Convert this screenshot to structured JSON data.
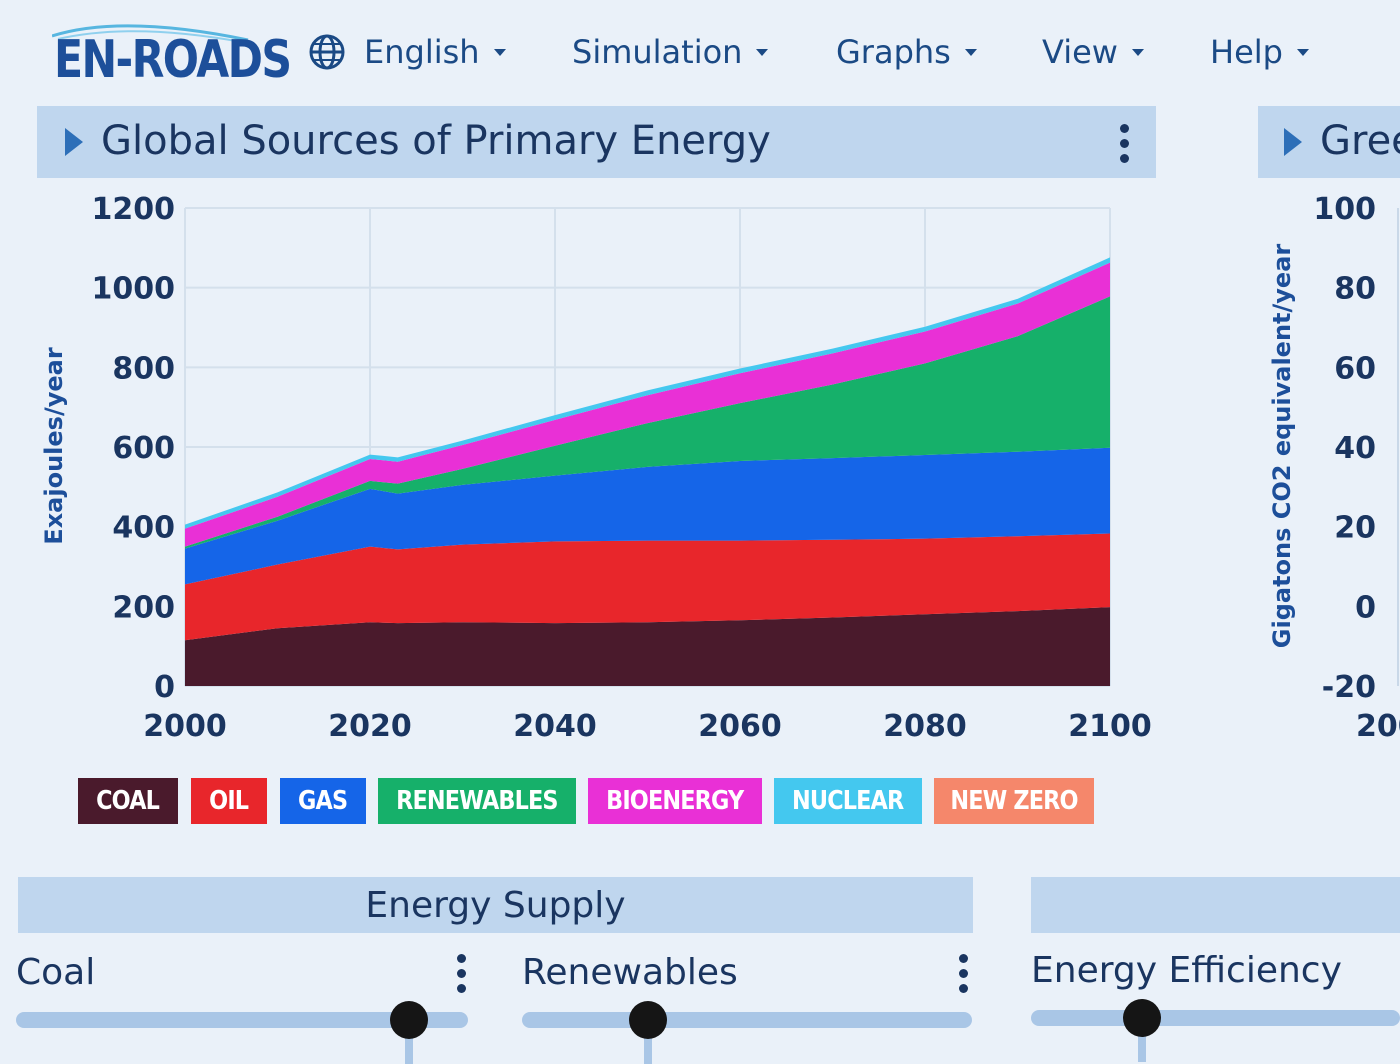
{
  "app": {
    "logo_text": "EN-ROADS"
  },
  "menu": [
    {
      "label": "English",
      "icon": "globe-icon"
    },
    {
      "label": "Simulation"
    },
    {
      "label": "Graphs"
    },
    {
      "label": "View"
    },
    {
      "label": "Help"
    }
  ],
  "main_graph": {
    "title": "Global Sources of Primary Energy",
    "ylabel": "Exajoules/year"
  },
  "side_graph": {
    "title": "Gree",
    "ylabel": "Gigatons CO2 equivalent/year",
    "yticks": [
      "100",
      "80",
      "60",
      "40",
      "20",
      "0",
      "-20"
    ],
    "xtick_partial": "200"
  },
  "legend": [
    {
      "label": "COAL",
      "color": "#4a1a2c"
    },
    {
      "label": "OIL",
      "color": "#e8262b"
    },
    {
      "label": "GAS",
      "color": "#1565e8"
    },
    {
      "label": "RENEWABLES",
      "color": "#16b06a"
    },
    {
      "label": "BIOENERGY",
      "color": "#e930d6"
    },
    {
      "label": "NUCLEAR",
      "color": "#44c8ef"
    },
    {
      "label": "NEW ZERO",
      "color": "#f5876b"
    }
  ],
  "chart_data": {
    "type": "area",
    "stacked": true,
    "title": "Global Sources of Primary Energy",
    "xlabel": "",
    "ylabel": "Exajoules/year",
    "xlim": [
      2000,
      2100
    ],
    "ylim": [
      0,
      1200
    ],
    "xticks": [
      2000,
      2020,
      2040,
      2060,
      2080,
      2100
    ],
    "yticks": [
      0,
      200,
      400,
      600,
      800,
      1000,
      1200
    ],
    "grid": true,
    "x": [
      2000,
      2010,
      2020,
      2023,
      2030,
      2040,
      2050,
      2060,
      2070,
      2080,
      2090,
      2100
    ],
    "series": [
      {
        "name": "COAL",
        "color": "#4a1a2c",
        "values": [
          115,
          145,
          160,
          158,
          160,
          158,
          160,
          165,
          172,
          180,
          188,
          198
        ]
      },
      {
        "name": "OIL",
        "color": "#e8262b",
        "values": [
          140,
          160,
          190,
          185,
          195,
          205,
          205,
          200,
          195,
          190,
          188,
          185
        ]
      },
      {
        "name": "GAS",
        "color": "#1565e8",
        "values": [
          90,
          110,
          145,
          140,
          150,
          165,
          185,
          200,
          205,
          210,
          212,
          215
        ]
      },
      {
        "name": "RENEWABLES",
        "color": "#16b06a",
        "values": [
          5,
          10,
          20,
          25,
          40,
          75,
          110,
          145,
          185,
          230,
          290,
          380
        ]
      },
      {
        "name": "BIOENERGY",
        "color": "#e930d6",
        "values": [
          45,
          50,
          55,
          55,
          60,
          65,
          70,
          75,
          78,
          80,
          82,
          85
        ]
      },
      {
        "name": "NUCLEAR",
        "color": "#44c8ef",
        "values": [
          10,
          11,
          11,
          11,
          11,
          12,
          12,
          12,
          12,
          12,
          12,
          13
        ]
      },
      {
        "name": "NEW ZERO",
        "color": "#f5876b",
        "values": [
          0,
          0,
          0,
          0,
          0,
          0,
          0,
          0,
          0,
          0,
          0,
          0
        ]
      }
    ]
  },
  "sections": {
    "energy_supply": {
      "title": "Energy Supply",
      "sliders": [
        {
          "label": "Coal",
          "position": 0.87
        },
        {
          "label": "Renewables",
          "position": 0.28
        }
      ]
    },
    "right_section": {
      "slider_label": "Energy Efficiency",
      "slider_position": 0.3
    }
  }
}
